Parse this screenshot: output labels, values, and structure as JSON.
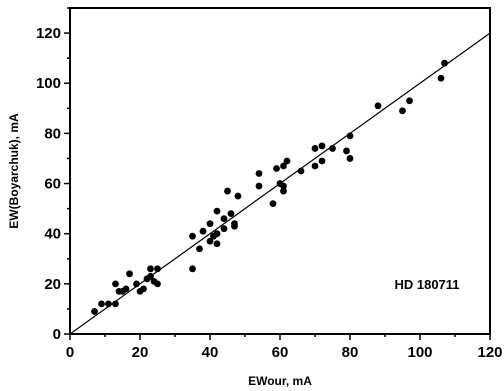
{
  "chart_data": {
    "type": "scatter",
    "xlabel": "EWour, mA",
    "ylabel": "EW(Boyarchuk), mA",
    "xlim": [
      0,
      120
    ],
    "ylim": [
      0,
      130
    ],
    "xticks": [
      0,
      20,
      40,
      60,
      80,
      100,
      120
    ],
    "yticks": [
      0,
      20,
      40,
      60,
      80,
      100,
      120
    ],
    "annotation": "HD 180711",
    "grid": false,
    "fit_line": {
      "x": [
        0,
        120
      ],
      "y": [
        0,
        120
      ]
    },
    "points": [
      {
        "x": 7,
        "y": 9
      },
      {
        "x": 9,
        "y": 12
      },
      {
        "x": 11,
        "y": 12
      },
      {
        "x": 13,
        "y": 12
      },
      {
        "x": 13,
        "y": 20
      },
      {
        "x": 14,
        "y": 17
      },
      {
        "x": 15,
        "y": 17
      },
      {
        "x": 16,
        "y": 18
      },
      {
        "x": 17,
        "y": 24
      },
      {
        "x": 19,
        "y": 20
      },
      {
        "x": 20,
        "y": 17
      },
      {
        "x": 21,
        "y": 18
      },
      {
        "x": 22,
        "y": 22
      },
      {
        "x": 23,
        "y": 23
      },
      {
        "x": 23,
        "y": 26
      },
      {
        "x": 24,
        "y": 21
      },
      {
        "x": 25,
        "y": 20
      },
      {
        "x": 25,
        "y": 26
      },
      {
        "x": 35,
        "y": 26
      },
      {
        "x": 35,
        "y": 39
      },
      {
        "x": 37,
        "y": 34
      },
      {
        "x": 38,
        "y": 41
      },
      {
        "x": 40,
        "y": 37
      },
      {
        "x": 40,
        "y": 44
      },
      {
        "x": 41,
        "y": 39
      },
      {
        "x": 42,
        "y": 36
      },
      {
        "x": 42,
        "y": 40
      },
      {
        "x": 42,
        "y": 49
      },
      {
        "x": 44,
        "y": 42
      },
      {
        "x": 44,
        "y": 46
      },
      {
        "x": 45,
        "y": 57
      },
      {
        "x": 46,
        "y": 48
      },
      {
        "x": 47,
        "y": 43
      },
      {
        "x": 47,
        "y": 44
      },
      {
        "x": 48,
        "y": 55
      },
      {
        "x": 54,
        "y": 59
      },
      {
        "x": 54,
        "y": 64
      },
      {
        "x": 58,
        "y": 52
      },
      {
        "x": 59,
        "y": 66
      },
      {
        "x": 60,
        "y": 60
      },
      {
        "x": 61,
        "y": 57
      },
      {
        "x": 61,
        "y": 59
      },
      {
        "x": 61,
        "y": 67
      },
      {
        "x": 62,
        "y": 69
      },
      {
        "x": 66,
        "y": 65
      },
      {
        "x": 70,
        "y": 67
      },
      {
        "x": 70,
        "y": 74
      },
      {
        "x": 72,
        "y": 69
      },
      {
        "x": 72,
        "y": 75
      },
      {
        "x": 75,
        "y": 74
      },
      {
        "x": 79,
        "y": 73
      },
      {
        "x": 80,
        "y": 79
      },
      {
        "x": 80,
        "y": 70
      },
      {
        "x": 88,
        "y": 91
      },
      {
        "x": 95,
        "y": 89
      },
      {
        "x": 97,
        "y": 93
      },
      {
        "x": 106,
        "y": 102
      },
      {
        "x": 107,
        "y": 108
      }
    ]
  }
}
